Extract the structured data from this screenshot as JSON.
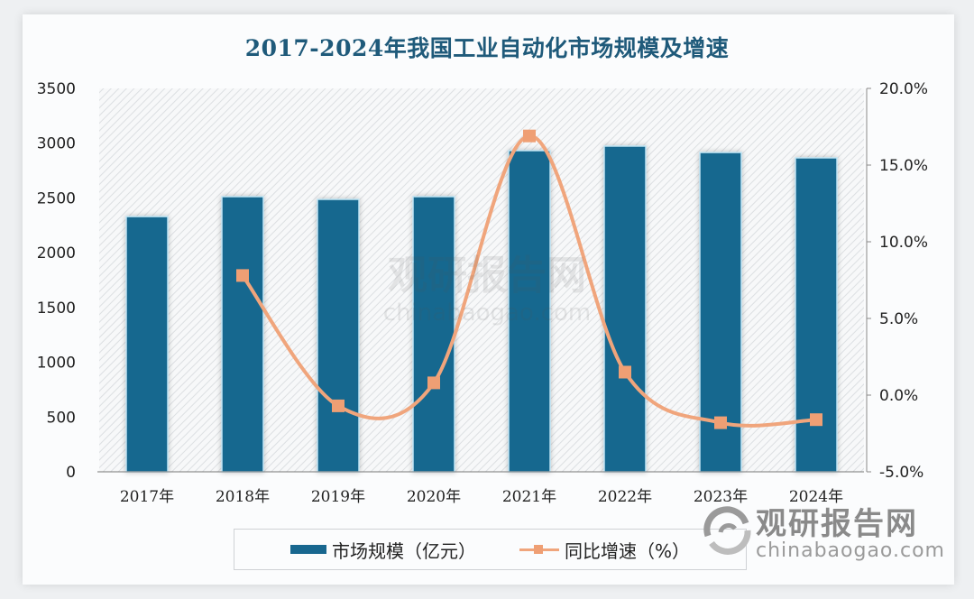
{
  "chart_data": {
    "type": "bar+line",
    "title": "2017-2024年我国工业自动化市场规模及增速",
    "categories": [
      "2017年",
      "2018年",
      "2019年",
      "2020年",
      "2021年",
      "2022年",
      "2023年",
      "2024年"
    ],
    "series": [
      {
        "name": "市场规模（亿元）",
        "type": "bar",
        "axis": "left",
        "color": "#18678f",
        "values": [
          2330,
          2512,
          2487,
          2512,
          2932,
          2973,
          2915,
          2866
        ]
      },
      {
        "name": "同比增速（%）",
        "type": "line",
        "axis": "right",
        "color": "#f0a57c",
        "values": [
          null,
          7.8,
          -0.7,
          0.8,
          16.9,
          1.5,
          -1.8,
          -1.6
        ]
      }
    ],
    "left_axis": {
      "min": 0,
      "max": 3500,
      "ticks": [
        "0",
        "500",
        "1000",
        "1500",
        "2000",
        "2500",
        "3000",
        "3500"
      ]
    },
    "right_axis": {
      "min": -5,
      "max": 20,
      "ticks": [
        "-5.0%",
        "0.0%",
        "5.0%",
        "10.0%",
        "15.0%",
        "20.0%"
      ]
    },
    "legend_position": "bottom",
    "grid": false
  },
  "legend": {
    "bar_label": "市场规模（亿元）",
    "line_label": "同比增速（%）"
  },
  "watermark": {
    "cn": "观研报告网",
    "en": "chinabaogao.com"
  }
}
